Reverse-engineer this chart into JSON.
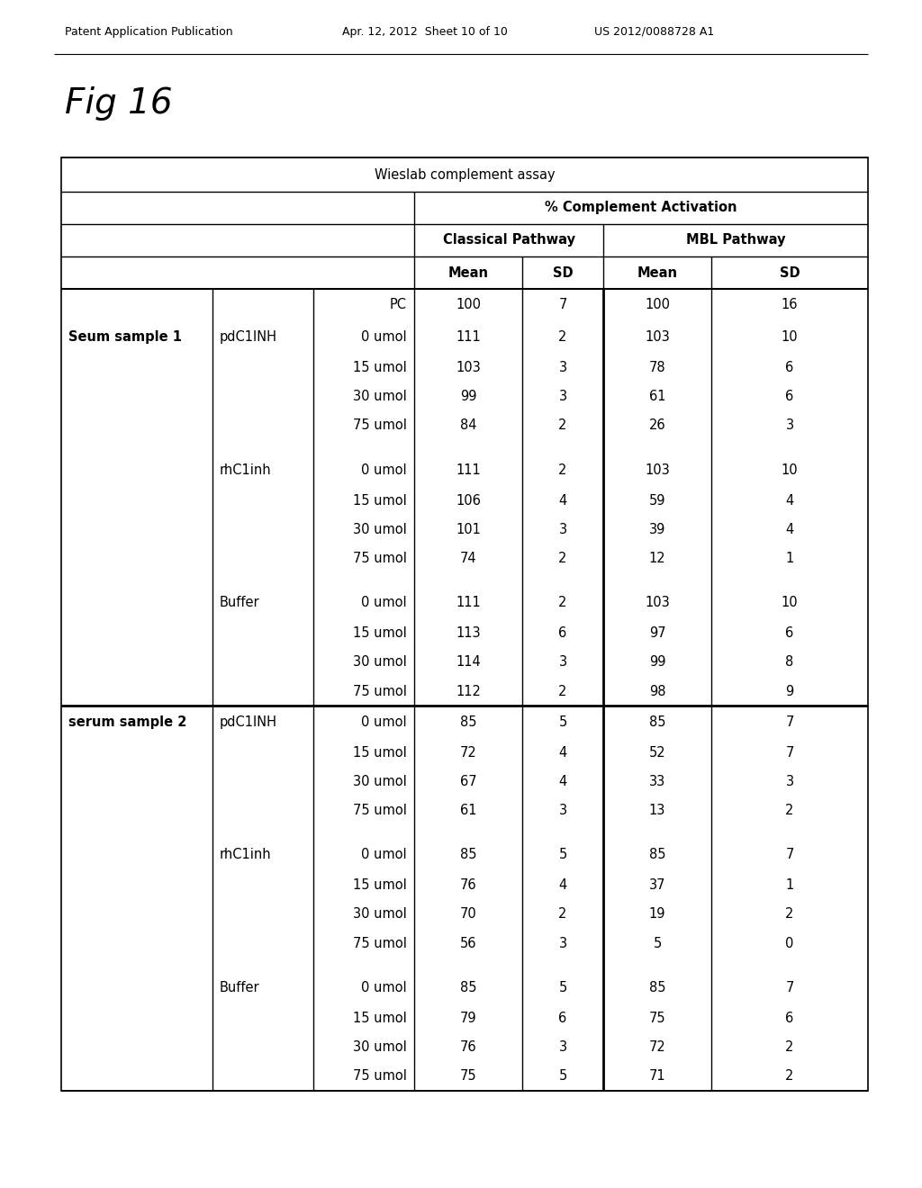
{
  "header_text_left": "Patent Application Publication",
  "header_text_mid": "Apr. 12, 2012  Sheet 10 of 10",
  "header_text_right": "US 2012/0088728 A1",
  "fig_label": "Fig 16",
  "table_title": "Wieslab complement assay",
  "col_header2": "% Complement Activation",
  "col_header3a": "Classical Pathway",
  "col_header3b": "MBL Pathway",
  "rows": [
    {
      "col1": "",
      "col2": "",
      "col3": "PC",
      "cp_mean": "100",
      "cp_sd": "7",
      "mbl_mean": "100",
      "mbl_sd": "16"
    },
    {
      "col1": "Seum sample 1",
      "col2": "pdC1INH",
      "col3": "0 umol",
      "cp_mean": "111",
      "cp_sd": "2",
      "mbl_mean": "103",
      "mbl_sd": "10"
    },
    {
      "col1": "",
      "col2": "",
      "col3": "15 umol",
      "cp_mean": "103",
      "cp_sd": "3",
      "mbl_mean": "78",
      "mbl_sd": "6"
    },
    {
      "col1": "",
      "col2": "",
      "col3": "30 umol",
      "cp_mean": "99",
      "cp_sd": "3",
      "mbl_mean": "61",
      "mbl_sd": "6"
    },
    {
      "col1": "",
      "col2": "",
      "col3": "75 umol",
      "cp_mean": "84",
      "cp_sd": "2",
      "mbl_mean": "26",
      "mbl_sd": "3"
    },
    {
      "col1": "",
      "col2": "rhC1inh",
      "col3": "0 umol",
      "cp_mean": "111",
      "cp_sd": "2",
      "mbl_mean": "103",
      "mbl_sd": "10"
    },
    {
      "col1": "",
      "col2": "",
      "col3": "15 umol",
      "cp_mean": "106",
      "cp_sd": "4",
      "mbl_mean": "59",
      "mbl_sd": "4"
    },
    {
      "col1": "",
      "col2": "",
      "col3": "30 umol",
      "cp_mean": "101",
      "cp_sd": "3",
      "mbl_mean": "39",
      "mbl_sd": "4"
    },
    {
      "col1": "",
      "col2": "",
      "col3": "75 umol",
      "cp_mean": "74",
      "cp_sd": "2",
      "mbl_mean": "12",
      "mbl_sd": "1"
    },
    {
      "col1": "",
      "col2": "Buffer",
      "col3": "0 umol",
      "cp_mean": "111",
      "cp_sd": "2",
      "mbl_mean": "103",
      "mbl_sd": "10"
    },
    {
      "col1": "",
      "col2": "",
      "col3": "15 umol",
      "cp_mean": "113",
      "cp_sd": "6",
      "mbl_mean": "97",
      "mbl_sd": "6"
    },
    {
      "col1": "",
      "col2": "",
      "col3": "30 umol",
      "cp_mean": "114",
      "cp_sd": "3",
      "mbl_mean": "99",
      "mbl_sd": "8"
    },
    {
      "col1": "",
      "col2": "",
      "col3": "75 umol",
      "cp_mean": "112",
      "cp_sd": "2",
      "mbl_mean": "98",
      "mbl_sd": "9"
    },
    {
      "col1": "serum sample 2",
      "col2": "pdC1INH",
      "col3": "0 umol",
      "cp_mean": "85",
      "cp_sd": "5",
      "mbl_mean": "85",
      "mbl_sd": "7"
    },
    {
      "col1": "",
      "col2": "",
      "col3": "15 umol",
      "cp_mean": "72",
      "cp_sd": "4",
      "mbl_mean": "52",
      "mbl_sd": "7"
    },
    {
      "col1": "",
      "col2": "",
      "col3": "30 umol",
      "cp_mean": "67",
      "cp_sd": "4",
      "mbl_mean": "33",
      "mbl_sd": "3"
    },
    {
      "col1": "",
      "col2": "",
      "col3": "75 umol",
      "cp_mean": "61",
      "cp_sd": "3",
      "mbl_mean": "13",
      "mbl_sd": "2"
    },
    {
      "col1": "",
      "col2": "rhC1inh",
      "col3": "0 umol",
      "cp_mean": "85",
      "cp_sd": "5",
      "mbl_mean": "85",
      "mbl_sd": "7"
    },
    {
      "col1": "",
      "col2": "",
      "col3": "15 umol",
      "cp_mean": "76",
      "cp_sd": "4",
      "mbl_mean": "37",
      "mbl_sd": "1"
    },
    {
      "col1": "",
      "col2": "",
      "col3": "30 umol",
      "cp_mean": "70",
      "cp_sd": "2",
      "mbl_mean": "19",
      "mbl_sd": "2"
    },
    {
      "col1": "",
      "col2": "",
      "col3": "75 umol",
      "cp_mean": "56",
      "cp_sd": "3",
      "mbl_mean": "5",
      "mbl_sd": "0"
    },
    {
      "col1": "",
      "col2": "Buffer",
      "col3": "0 umol",
      "cp_mean": "85",
      "cp_sd": "5",
      "mbl_mean": "85",
      "mbl_sd": "7"
    },
    {
      "col1": "",
      "col2": "",
      "col3": "15 umol",
      "cp_mean": "79",
      "cp_sd": "6",
      "mbl_mean": "75",
      "mbl_sd": "6"
    },
    {
      "col1": "",
      "col2": "",
      "col3": "30 umol",
      "cp_mean": "76",
      "cp_sd": "3",
      "mbl_mean": "72",
      "mbl_sd": "2"
    },
    {
      "col1": "",
      "col2": "",
      "col3": "75 umol",
      "cp_mean": "75",
      "cp_sd": "5",
      "mbl_mean": "71",
      "mbl_sd": "2"
    }
  ],
  "bg_color": "#ffffff",
  "text_color": "#000000"
}
